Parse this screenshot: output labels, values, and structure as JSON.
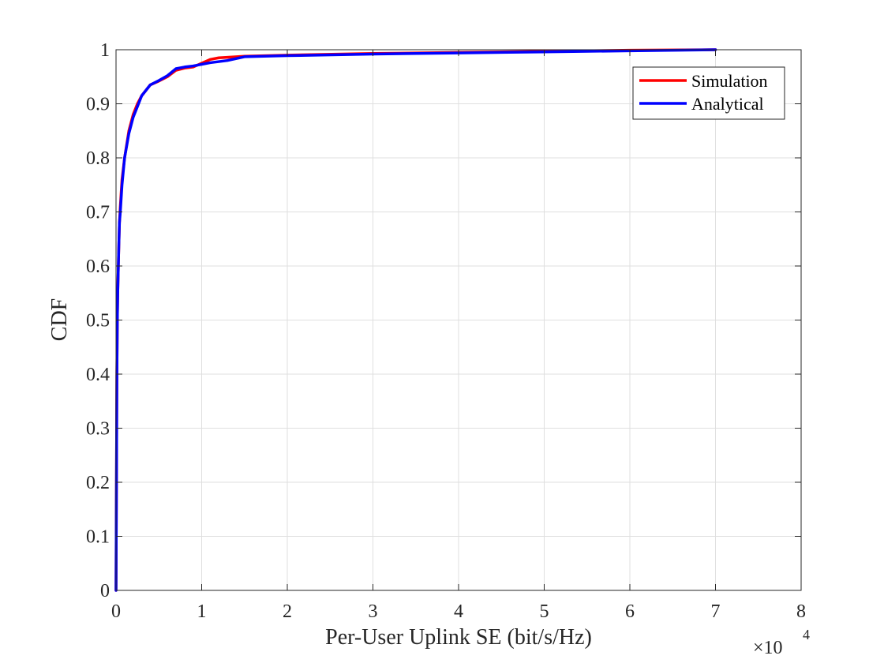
{
  "chart_data": {
    "type": "line",
    "title": "",
    "xlabel": "Per-User Uplink SE (bit/s/Hz)",
    "ylabel": "CDF",
    "x_exponent": {
      "base": "×10",
      "power": "4"
    },
    "xlim": [
      0,
      80000
    ],
    "ylim": [
      0,
      1
    ],
    "x_ticks": [
      0,
      10000,
      20000,
      30000,
      40000,
      50000,
      60000,
      70000,
      80000
    ],
    "x_tick_labels": [
      "0",
      "1",
      "2",
      "3",
      "4",
      "5",
      "6",
      "7",
      "8"
    ],
    "y_ticks": [
      0,
      0.1,
      0.2,
      0.3,
      0.4,
      0.5,
      0.6,
      0.7,
      0.8,
      0.9,
      1
    ],
    "y_tick_labels": [
      "0",
      "0.1",
      "0.2",
      "0.3",
      "0.4",
      "0.5",
      "0.6",
      "0.7",
      "0.8",
      "0.9",
      "1"
    ],
    "grid": true,
    "legend_position": "top-right",
    "series": [
      {
        "name": "Simulation",
        "color": "#ff0000",
        "x": [
          0,
          50,
          100,
          150,
          200,
          300,
          400,
          500,
          700,
          1000,
          1500,
          2000,
          2500,
          3000,
          3500,
          4000,
          5000,
          6000,
          7000,
          8000,
          9000,
          10000,
          11000,
          12000,
          13000,
          15000,
          20000,
          30000,
          40000,
          50000,
          60000,
          70000
        ],
        "y": [
          0,
          0.2,
          0.4,
          0.5,
          0.55,
          0.62,
          0.68,
          0.71,
          0.76,
          0.8,
          0.85,
          0.88,
          0.9,
          0.915,
          0.925,
          0.935,
          0.942,
          0.95,
          0.962,
          0.966,
          0.968,
          0.975,
          0.982,
          0.985,
          0.986,
          0.988,
          0.99,
          0.993,
          0.995,
          0.997,
          0.999,
          1.0
        ]
      },
      {
        "name": "Analytical",
        "color": "#0000ff",
        "x": [
          0,
          50,
          100,
          150,
          200,
          300,
          400,
          500,
          700,
          1000,
          1500,
          2000,
          2500,
          3000,
          3500,
          4000,
          5000,
          6000,
          7000,
          8000,
          9000,
          10000,
          11000,
          12000,
          13000,
          15000,
          20000,
          30000,
          40000,
          50000,
          60000,
          70000
        ],
        "y": [
          0,
          0.2,
          0.4,
          0.5,
          0.55,
          0.62,
          0.68,
          0.7,
          0.75,
          0.8,
          0.845,
          0.875,
          0.895,
          0.915,
          0.925,
          0.935,
          0.943,
          0.952,
          0.965,
          0.968,
          0.97,
          0.973,
          0.976,
          0.978,
          0.98,
          0.987,
          0.989,
          0.992,
          0.994,
          0.996,
          0.998,
          1.0
        ]
      }
    ]
  }
}
